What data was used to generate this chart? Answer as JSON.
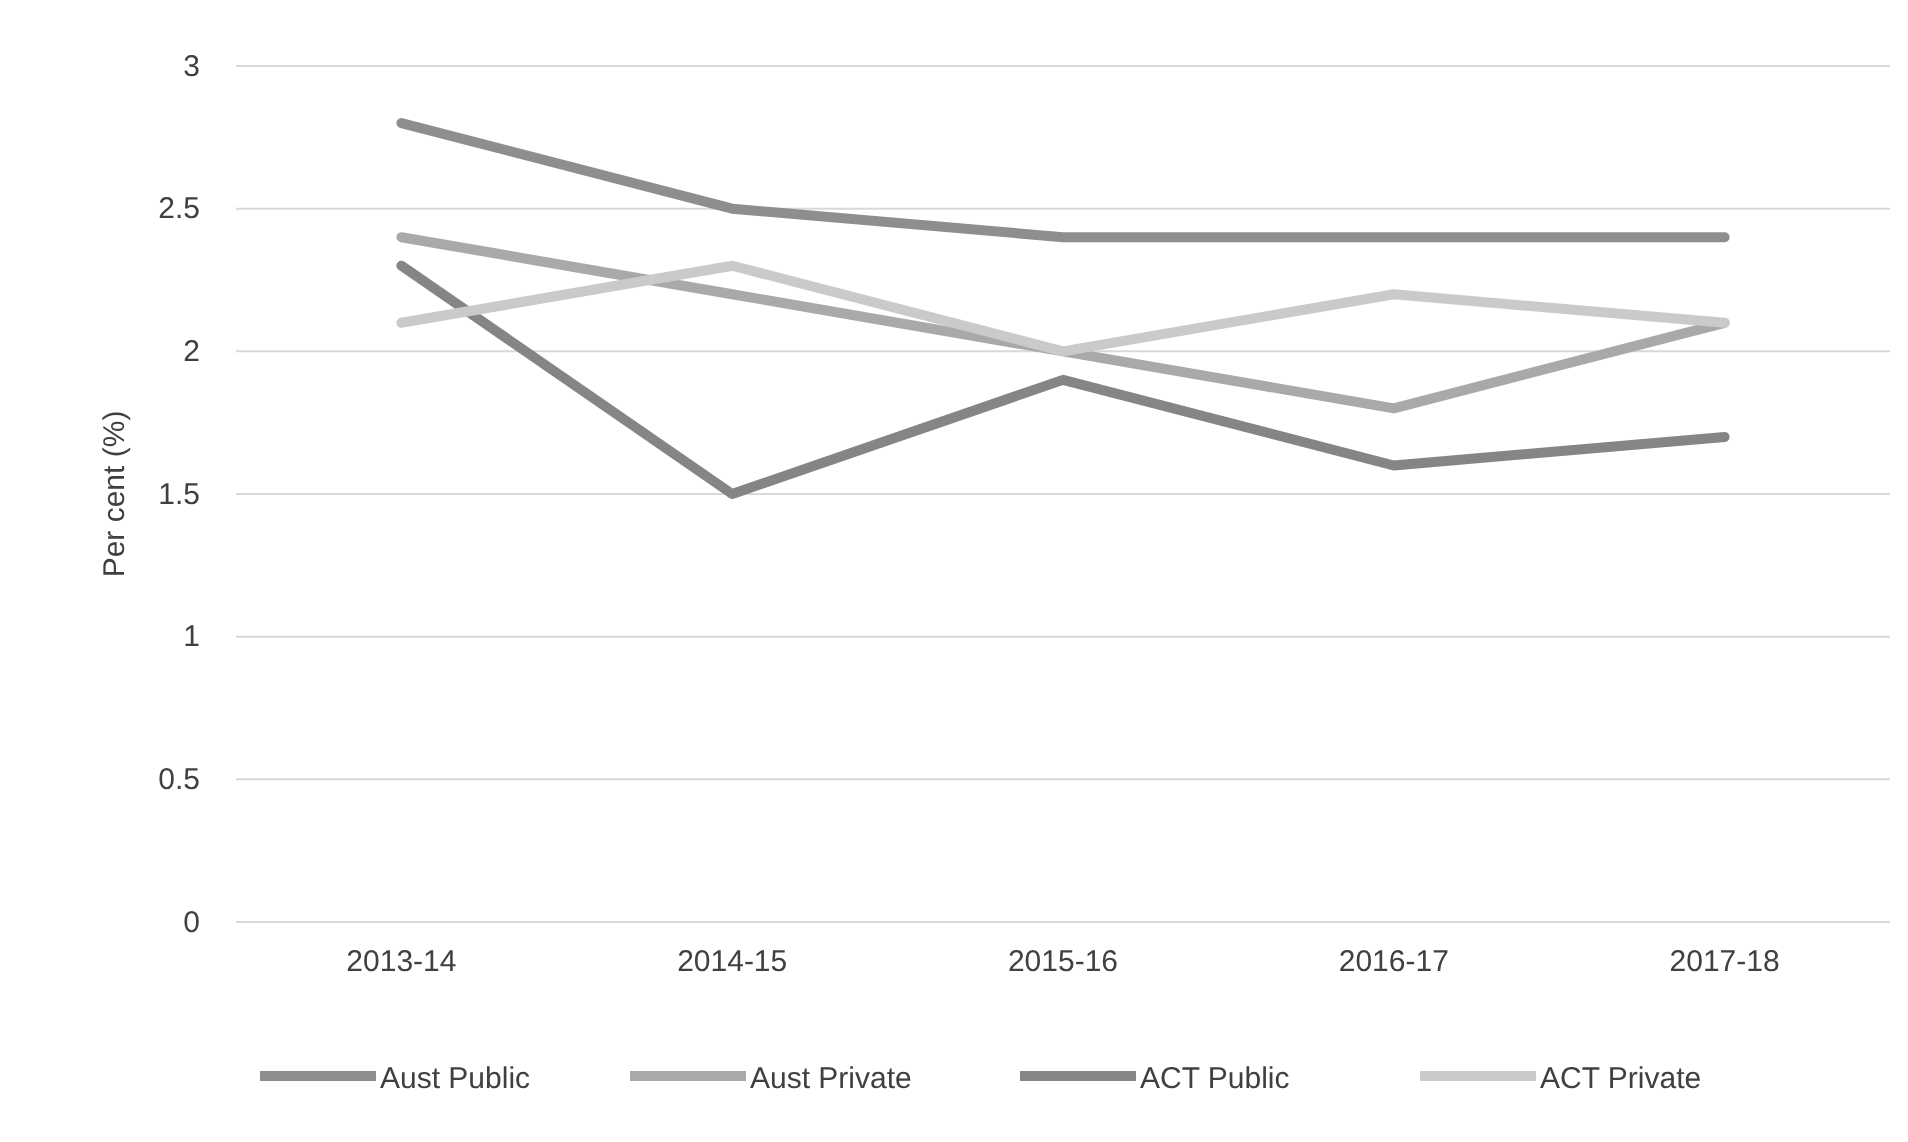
{
  "chart_data": {
    "type": "line",
    "ylabel": "Per cent (%)",
    "categories": [
      "2013-14",
      "2014-15",
      "2015-16",
      "2016-17",
      "2017-18"
    ],
    "series": [
      {
        "name": "Aust Public",
        "color": "#8e8e8e",
        "values": [
          2.8,
          2.5,
          2.4,
          2.4,
          2.4
        ]
      },
      {
        "name": "Aust Private",
        "color": "#a9a9a9",
        "values": [
          2.4,
          2.2,
          2.0,
          1.8,
          2.1
        ]
      },
      {
        "name": "ACT Public",
        "color": "#858585",
        "values": [
          2.3,
          1.5,
          1.9,
          1.6,
          1.7
        ]
      },
      {
        "name": "ACT Private",
        "color": "#cacaca",
        "values": [
          2.1,
          2.3,
          2.0,
          2.2,
          2.1
        ]
      }
    ],
    "ylim": [
      0,
      3
    ],
    "yticks": [
      0,
      0.5,
      1,
      1.5,
      2,
      2.5,
      3
    ],
    "grid": "y",
    "legend": "bottom",
    "marker": "none",
    "line_style": "solid"
  }
}
